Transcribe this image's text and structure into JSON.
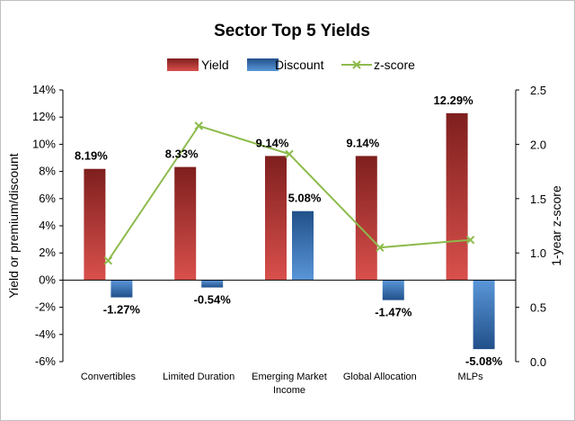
{
  "chart_data": {
    "type": "bar",
    "title": "Sector Top 5 Yields",
    "categories": [
      "Convertibles",
      "Limited Duration",
      "Emerging Market Income",
      "Global Allocation",
      "MLPs"
    ],
    "category_lines": [
      [
        "Convertibles"
      ],
      [
        "Limited Duration"
      ],
      [
        "Emerging Market",
        "Income"
      ],
      [
        "Global Allocation"
      ],
      [
        "MLPs"
      ]
    ],
    "series": [
      {
        "name": "Yield",
        "kind": "bar",
        "axis": "left",
        "values": [
          8.19,
          8.33,
          9.14,
          9.14,
          12.29
        ],
        "labels": [
          "8.19%",
          "8.33%",
          "9.14%",
          "9.14%",
          "12.29%"
        ],
        "color": "#b5302f"
      },
      {
        "name": "Discount",
        "kind": "bar",
        "axis": "left",
        "values": [
          -1.27,
          -0.54,
          5.08,
          -1.47,
          -5.08
        ],
        "labels": [
          "-1.27%",
          "-0.54%",
          "5.08%",
          "-1.47%",
          "-5.08%"
        ],
        "color": "#3a74b8"
      },
      {
        "name": "z-score",
        "kind": "line",
        "axis": "right",
        "values": [
          0.93,
          2.17,
          1.91,
          1.05,
          1.12
        ],
        "color": "#8dbb4c"
      }
    ],
    "ylabel": "Yield or premium/discount",
    "y2label": "1-year z-score",
    "ylim": [
      -6,
      14
    ],
    "y2lim": [
      0,
      2.5
    ],
    "yticks": [
      -6,
      -4,
      -2,
      0,
      2,
      4,
      6,
      8,
      10,
      12,
      14
    ],
    "yticklabels": [
      "-6%",
      "-4%",
      "-2%",
      "0%",
      "2%",
      "4%",
      "6%",
      "8%",
      "10%",
      "12%",
      "14%"
    ],
    "y2ticks": [
      0,
      0.5,
      1,
      1.5,
      2,
      2.5
    ],
    "y2ticklabels": [
      "0.0",
      "0.5",
      "1.0",
      "1.5",
      "2.0",
      "2.5"
    ],
    "grid": false,
    "legend": "top-center"
  }
}
